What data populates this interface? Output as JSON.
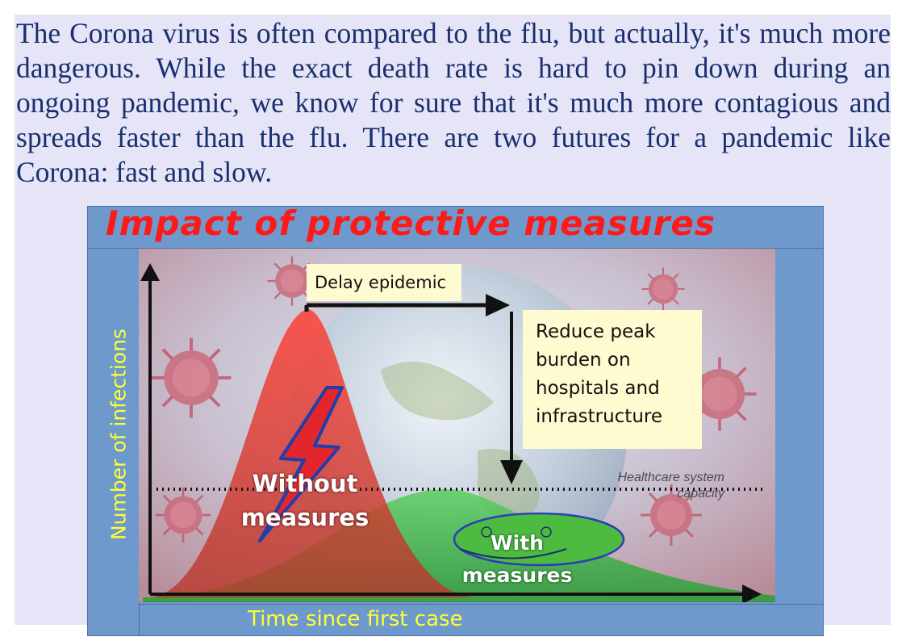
{
  "intro_text": "The Corona virus is often compared to the flu, but actually, it's much more dangerous. While the exact death rate is hard to pin down during an ongoing pandemic, we know for sure that it's much more contagious and spreads faster than the flu. There are two futures for a pandemic like Corona: fast and slow.",
  "figure": {
    "title": "Impact of protective measures",
    "y_axis_label": "Number of infections",
    "x_axis_label": "Time since first case",
    "notes": {
      "delay": "Delay epidemic",
      "reduce_lines": [
        "Reduce peak",
        "burden on",
        "hospitals and",
        "infrastructure"
      ]
    },
    "curves": {
      "without_lines": [
        "Without",
        "measures"
      ],
      "with_lines": [
        "With",
        "measures"
      ]
    },
    "capacity_lines": [
      "Healthcare system",
      "capacity"
    ],
    "icons": [
      "lightning-icon",
      "smiley-icon",
      "virus-icon",
      "globe-icon"
    ],
    "colors": {
      "title": "#ff1919",
      "axis_labels": "#ffff33",
      "frame": "#6e99cc",
      "without_curve": "#e53935",
      "with_curve": "#43b649",
      "note_background": "#fffbd0",
      "intro_text": "#1a2f6e"
    }
  }
}
